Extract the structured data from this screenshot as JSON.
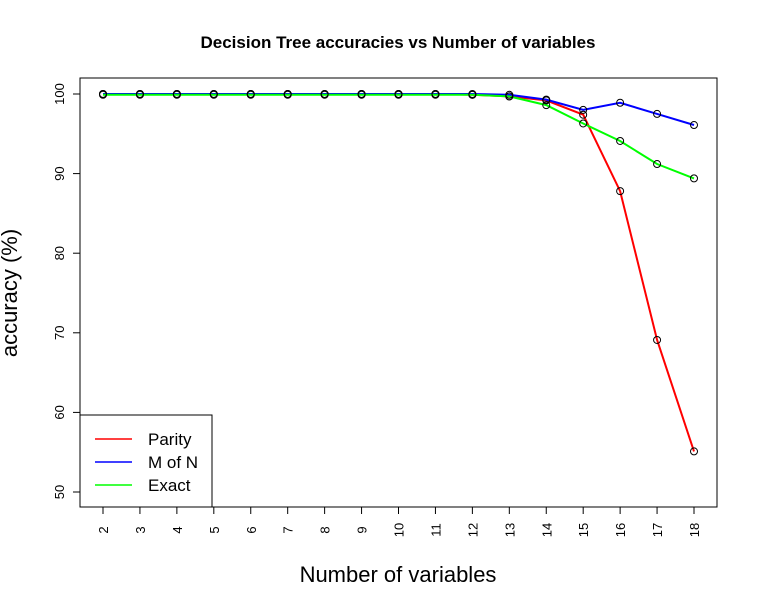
{
  "chart_data": {
    "type": "line",
    "title": "Decision Tree accuracies vs Number of variables",
    "xlabel": "Number of variables",
    "ylabel": "accuracy (%)",
    "x": [
      2,
      3,
      4,
      5,
      6,
      7,
      8,
      9,
      10,
      11,
      12,
      13,
      14,
      15,
      16,
      17,
      18
    ],
    "xlim": [
      2,
      18
    ],
    "ylim": [
      50,
      100
    ],
    "yticks": [
      50,
      60,
      70,
      80,
      90,
      100
    ],
    "grid": false,
    "legend_position": "bottom-left",
    "series": [
      {
        "name": "Parity",
        "color": "#ff0000",
        "values": [
          100,
          100,
          100,
          100,
          100,
          100,
          100,
          100,
          100,
          100,
          99.9,
          99.7,
          99.2,
          97.4,
          87.8,
          69.1,
          55.1
        ]
      },
      {
        "name": "M of N",
        "color": "#0000ff",
        "values": [
          100,
          100,
          100,
          100,
          100,
          100,
          100,
          100,
          100,
          100,
          100,
          99.9,
          99.3,
          98.0,
          98.9,
          97.5,
          96.1
        ]
      },
      {
        "name": "Exact",
        "color": "#00ff00",
        "values": [
          99.9,
          99.9,
          99.9,
          99.9,
          99.9,
          99.9,
          99.9,
          99.9,
          99.9,
          99.9,
          99.9,
          99.7,
          98.6,
          96.3,
          94.1,
          91.2,
          89.4
        ]
      }
    ]
  }
}
